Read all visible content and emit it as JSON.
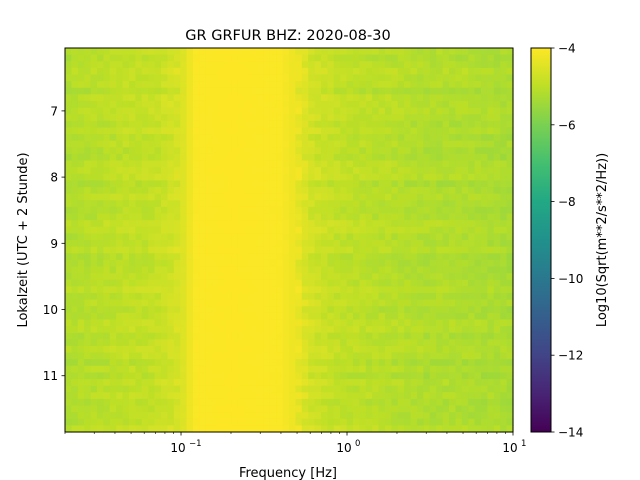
{
  "chart_data": {
    "type": "heatmap",
    "title": "GR GRFUR  BHZ: 2020-08-30",
    "xlabel": "Frequency [Hz]",
    "ylabel": "Lokalzeit (UTC + 2 Stunde)",
    "x_scale": "log",
    "xlim": [
      0.02,
      10
    ],
    "x_ticks": [
      {
        "value": 0.1,
        "base": "10",
        "exp": "−1"
      },
      {
        "value": 1,
        "base": "10",
        "exp": "0"
      },
      {
        "value": 10,
        "base": "10",
        "exp": "1"
      }
    ],
    "ylim": [
      11.85,
      6.05
    ],
    "y_ticks": [
      "7",
      "8",
      "9",
      "10",
      "11"
    ],
    "colorbar": {
      "label": "Log10(Sqrt(m**2/s**2/Hz))",
      "range": [
        -14,
        -4
      ],
      "ticks": [
        "−4",
        "−6",
        "−8",
        "−10",
        "−12",
        "−14"
      ],
      "colormap": "viridis"
    },
    "value_profile": {
      "freq_hz": [
        0.02,
        0.04,
        0.07,
        0.1,
        0.12,
        0.2,
        0.4,
        0.5,
        0.6,
        0.8,
        1.0,
        2.0,
        3.0,
        5.0,
        10.0
      ],
      "level": [
        -5.2,
        -5.0,
        -4.9,
        -4.6,
        -4.05,
        -4.0,
        -4.05,
        -4.3,
        -4.7,
        -4.9,
        -5.0,
        -5.1,
        -5.2,
        -5.2,
        -5.3
      ]
    },
    "time_range_hours": [
      6.05,
      11.85
    ]
  }
}
